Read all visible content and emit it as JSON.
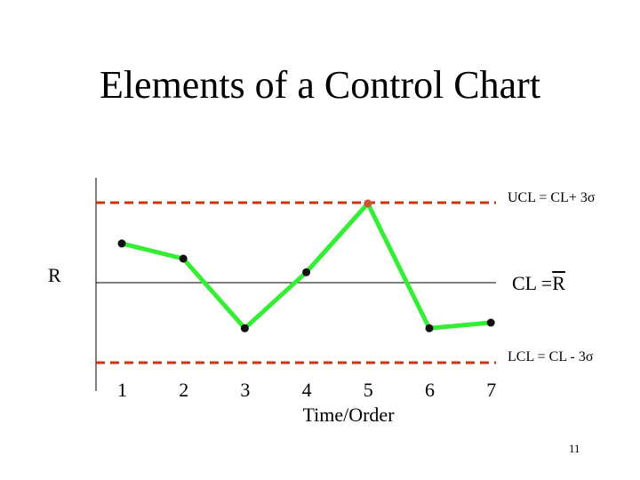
{
  "page": {
    "title": "Elements of a Control Chart",
    "page_number": "11"
  },
  "chart_data": {
    "type": "line",
    "xlabel": "Time/Order",
    "ylabel": "R",
    "x": [
      1,
      2,
      3,
      4,
      5,
      6,
      7
    ],
    "values": [
      0.49,
      0.3,
      -0.57,
      0.13,
      0.99,
      -0.57,
      -0.5
    ],
    "ylim": [
      -1,
      1
    ],
    "grid": false,
    "control_lines": {
      "ucl": {
        "value": 1,
        "label": "UCL = CL+ 3σ"
      },
      "cl": {
        "value": 0,
        "label_prefix": "CL = ",
        "label_symbol": "R"
      },
      "lcl": {
        "value": -1,
        "label": "LCL = CL - 3σ"
      }
    },
    "colors": {
      "series": "#33ee33",
      "limits": "#cc3311",
      "center": "#000000",
      "marker": "#111111",
      "out_of_control_marker": "#cc5533"
    }
  }
}
